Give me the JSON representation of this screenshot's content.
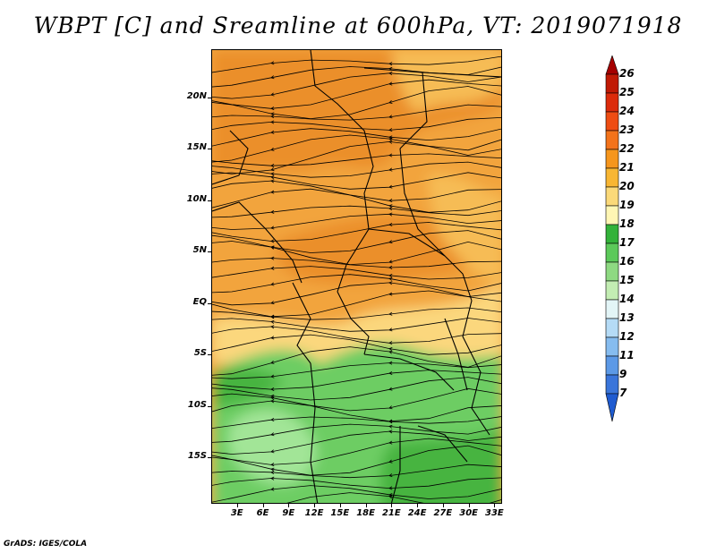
{
  "title": "WBPT [C] and Sreamline at 600hPa, VT: 2019071918",
  "footer": "GrADS: IGES/COLA",
  "map": {
    "lat_labels": [
      "20N",
      "15N",
      "10N",
      "5N",
      "EQ",
      "5S",
      "10S",
      "15S"
    ],
    "lon_labels": [
      "3E",
      "6E",
      "9E",
      "12E",
      "15E",
      "18E",
      "21E",
      "24E",
      "27E",
      "30E",
      "33E"
    ],
    "lat_values": [
      20,
      15,
      10,
      5,
      0,
      -5,
      -10,
      -15
    ],
    "lon_values": [
      3,
      6,
      9,
      12,
      15,
      18,
      21,
      24,
      27,
      30,
      33
    ],
    "lat_range": [
      -19.5,
      24.7
    ],
    "lon_range": [
      0,
      33.9
    ],
    "variable": "wet-bulb potential temperature",
    "units": "C",
    "level": "600hPa",
    "valid_time": "2019071918"
  },
  "colorbar": {
    "labels": [
      "26",
      "25",
      "24",
      "23",
      "22",
      "21",
      "20",
      "19",
      "18",
      "17",
      "16",
      "15",
      "14",
      "13",
      "12",
      "11",
      "9",
      "7"
    ],
    "colors": [
      "#a50000",
      "#c01a05",
      "#dc2b0b",
      "#ee4d13",
      "#f3731b",
      "#f6961d",
      "#f8b633",
      "#fbd979",
      "#fff6b4",
      "#33b23a",
      "#5cc95a",
      "#8ed982",
      "#c3edb3",
      "#e3f5f7",
      "#b5dbf6",
      "#86bcef",
      "#5c99e6",
      "#3a75da",
      "#1f5bd0"
    ]
  },
  "field_colors": {
    "orange_dark": "#eb8f2b",
    "orange": "#f2a43c",
    "orange_light": "#f6bc55",
    "yellow": "#fbd77d",
    "green_dark": "#47b43f",
    "green": "#6dcd63",
    "green_light": "#a2e597"
  }
}
